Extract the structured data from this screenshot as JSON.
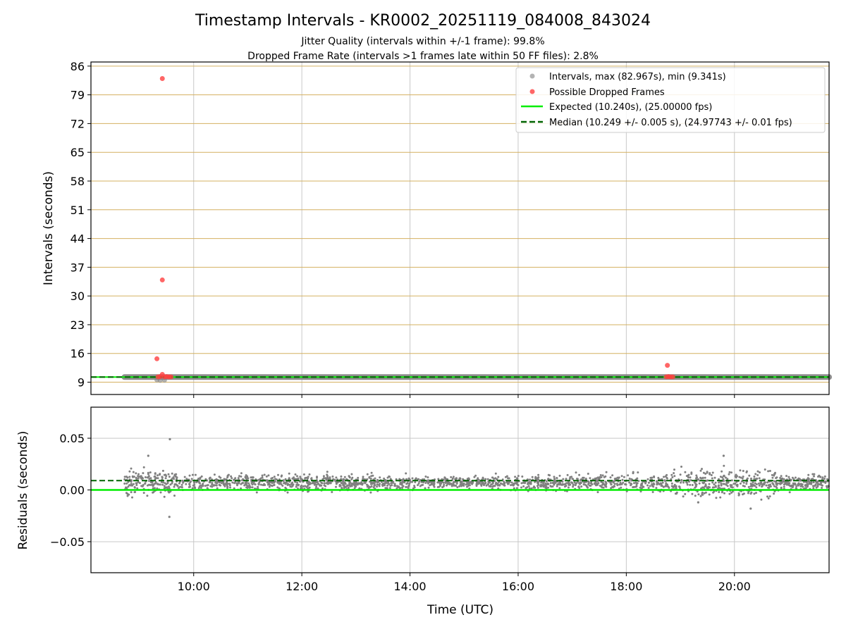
{
  "title": "Timestamp Intervals - KR0002_20251119_084008_843024",
  "subtitle1": "Jitter Quality (intervals within +/-1 frame): 99.8%",
  "subtitle2": "Dropped Frame Rate (intervals >1 frames late within 50 FF files): 2.8%",
  "colors": {
    "intervals": "#808080",
    "dropped": "#ff4040",
    "expected": "#00ee00",
    "median": "#006400",
    "hgrid_top": "#d4b060",
    "grid": "#c8c8c8"
  },
  "chart_data": [
    {
      "type": "scatter",
      "name": "intervals",
      "ylabel": "Intervals (seconds)",
      "ylim": [
        6,
        87
      ],
      "xlim": [
        8.1,
        21.75
      ],
      "yticks": [
        9,
        16,
        23,
        30,
        37,
        44,
        51,
        58,
        65,
        72,
        79,
        86
      ],
      "ytick_labels": [
        "9",
        "16",
        "23",
        "30",
        "37",
        "44",
        "51",
        "58",
        "65",
        "72",
        "79",
        "86"
      ],
      "legend": {
        "position": "top-right",
        "entries": [
          "Intervals, max (82.967s), min (9.341s)",
          "Possible Dropped Frames",
          "Expected (10.240s), (25.00000 fps)",
          "Median (10.249 +/- 0.005 s), (24.97743 +/- 0.01 fps)"
        ]
      },
      "expected_interval": 10.24,
      "median_interval": 10.249,
      "intervals_x_range": [
        8.72,
        21.75
      ],
      "intervals_y": 10.249,
      "dropped_frames": [
        {
          "t": 9.42,
          "v": 82.97
        },
        {
          "t": 9.42,
          "v": 33.9
        },
        {
          "t": 9.32,
          "v": 14.7
        },
        {
          "t": 9.42,
          "v": 10.9
        },
        {
          "t": 9.34,
          "v": 10.3
        },
        {
          "t": 9.38,
          "v": 10.35
        },
        {
          "t": 9.46,
          "v": 10.3
        },
        {
          "t": 9.5,
          "v": 10.35
        },
        {
          "t": 9.54,
          "v": 10.3
        },
        {
          "t": 9.58,
          "v": 10.3
        },
        {
          "t": 18.76,
          "v": 13.1
        },
        {
          "t": 18.74,
          "v": 10.3
        },
        {
          "t": 18.78,
          "v": 10.35
        },
        {
          "t": 18.82,
          "v": 10.3
        },
        {
          "t": 18.86,
          "v": 10.3
        }
      ]
    },
    {
      "type": "scatter",
      "name": "residuals",
      "xlabel": "Time (UTC)",
      "ylabel": "Residuals (seconds)",
      "ylim": [
        -0.08,
        0.08
      ],
      "xlim": [
        8.1,
        21.75
      ],
      "yticks": [
        -0.05,
        0.0,
        0.05
      ],
      "ytick_labels": [
        "−0.05",
        "0.00",
        "0.05"
      ],
      "xticks": [
        10,
        12,
        14,
        16,
        18,
        20
      ],
      "xtick_labels": [
        "10:00",
        "12:00",
        "14:00",
        "16:00",
        "18:00",
        "20:00"
      ],
      "expected_residual": 0.0,
      "median_residual": 0.009,
      "residual_x_range": [
        8.72,
        21.75
      ],
      "residual_center": 0.007,
      "outliers": [
        {
          "t": 9.56,
          "v": 0.049
        },
        {
          "t": 9.55,
          "v": -0.026
        },
        {
          "t": 9.16,
          "v": 0.033
        },
        {
          "t": 19.8,
          "v": 0.033
        },
        {
          "t": 19.33,
          "v": -0.012
        },
        {
          "t": 20.3,
          "v": -0.018
        }
      ]
    }
  ]
}
